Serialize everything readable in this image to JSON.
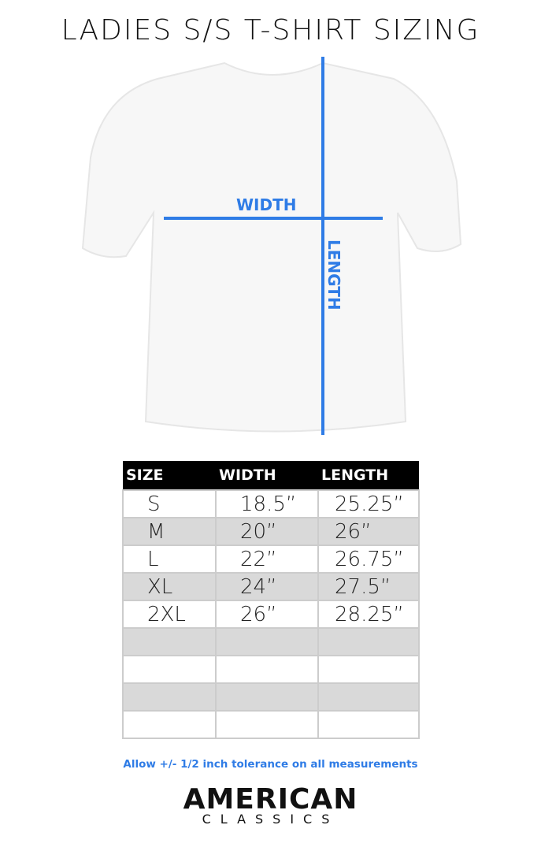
{
  "title": "LADIES S/S T-SHIRT SIZING",
  "diagram": {
    "width_label": "WIDTH",
    "length_label": "LENGTH",
    "line_color": "#2f7ce6"
  },
  "table": {
    "headers": [
      "SIZE",
      "WIDTH",
      "LENGTH"
    ],
    "rows": [
      [
        "S",
        "18.5”",
        "25.25”"
      ],
      [
        "M",
        "20”",
        "26”"
      ],
      [
        "L",
        "22”",
        "26.75”"
      ],
      [
        "XL",
        "24”",
        "27.5”"
      ],
      [
        "2XL",
        "26”",
        "28.25”"
      ],
      [
        "",
        "",
        ""
      ],
      [
        "",
        "",
        ""
      ],
      [
        "",
        "",
        ""
      ],
      [
        "",
        "",
        ""
      ]
    ]
  },
  "note": "Allow +/- 1/2 inch tolerance on all measurements",
  "logo": {
    "line1": "AMERICAN",
    "line2": "CLASSICS"
  }
}
